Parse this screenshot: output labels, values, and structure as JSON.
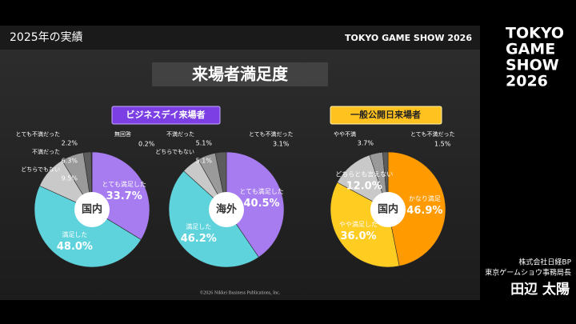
{
  "slide": {
    "header": "2025年の実績",
    "header_logo": "TOKYO GAME SHOW 2026",
    "title": "来場者満足度",
    "sections": [
      "ビジネスデイ来場者",
      "一般公開日来場者"
    ],
    "copyright": "©2026 Nikkei Business Publications, Inc."
  },
  "side": {
    "logo": [
      "TOKYO",
      "GAME",
      "SHOW",
      "2026"
    ],
    "company": "株式会社日経BP",
    "role": "東京ゲームショウ事務局長",
    "speaker": "田辺 太陽"
  },
  "chart_data": [
    {
      "type": "pie",
      "center_label": "国内",
      "categories": [
        "とても満足した",
        "満足した",
        "どちらでもない",
        "不満だった",
        "とても不満だった",
        "無回答"
      ],
      "values": [
        33.7,
        48.0,
        9.5,
        6.3,
        2.2,
        0.2
      ],
      "value_labels": [
        "33.7%",
        "48.0%",
        "9.5%",
        "6.3%",
        "2.2%",
        "0.2%"
      ],
      "colors": [
        "#a77cf0",
        "#5fd3dc",
        "#c9c9c9",
        "#9a9a9a",
        "#5c5c5c",
        "#333333"
      ]
    },
    {
      "type": "pie",
      "center_label": "海外",
      "categories": [
        "とても満足した",
        "満足した",
        "どちらでもない",
        "不満だった",
        "とても不満だった"
      ],
      "values": [
        40.5,
        46.2,
        5.1,
        5.1,
        3.1
      ],
      "value_labels": [
        "40.5%",
        "46.2%",
        "5.1%",
        "5.1%",
        "3.1%"
      ],
      "colors": [
        "#a77cf0",
        "#5fd3dc",
        "#c9c9c9",
        "#9a9a9a",
        "#5c5c5c"
      ]
    },
    {
      "type": "pie",
      "center_label": "国内",
      "categories": [
        "かなり満足",
        "やや満足した",
        "どちらとも言えない",
        "やや不満",
        "とても不満だった"
      ],
      "values": [
        46.9,
        36.0,
        12.0,
        3.7,
        1.5
      ],
      "value_labels": [
        "46.9%",
        "36.0%",
        "12.0%",
        "3.7%",
        "1.5%"
      ],
      "colors": [
        "#ff9a00",
        "#ffcc22",
        "#c9c9c9",
        "#9a9a9a",
        "#5c5c5c"
      ]
    }
  ]
}
